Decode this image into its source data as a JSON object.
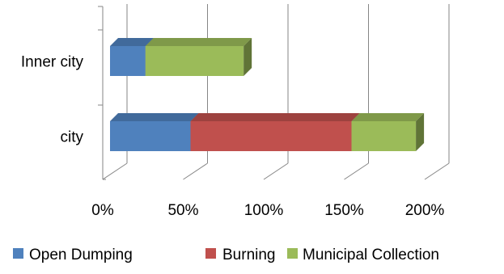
{
  "chart_data": {
    "type": "bar",
    "orientation": "horizontal",
    "stacked": true,
    "three_d": true,
    "categories": [
      "Inner city",
      "city"
    ],
    "series": [
      {
        "name": "Open Dumping",
        "values": [
          22,
          50
        ],
        "color": "#4F81BD"
      },
      {
        "name": "Burning",
        "values": [
          0,
          100
        ],
        "color": "#C0504D"
      },
      {
        "name": "Municipal Collection",
        "values": [
          61,
          40
        ],
        "color": "#9BBB59"
      }
    ],
    "xlim": [
      0,
      200
    ],
    "x_ticks": [
      "0%",
      "50%",
      "100%",
      "150%",
      "200%"
    ],
    "grid": true,
    "legend": "bottom"
  }
}
